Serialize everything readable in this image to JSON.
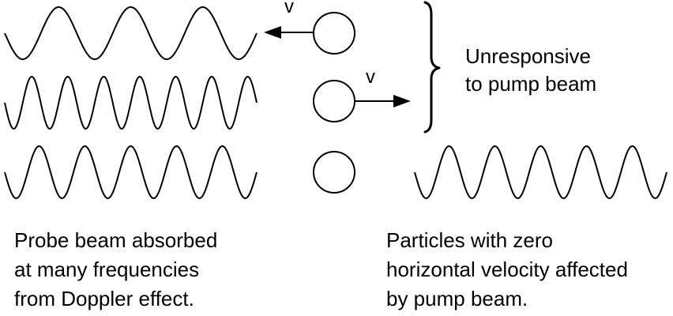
{
  "labels": {
    "velocity_top": "v",
    "velocity_mid": "v",
    "brace_line1": "Unresponsive",
    "brace_line2": "to pump beam",
    "probe_line1": "Probe beam absorbed",
    "probe_line2": "at many frequencies",
    "probe_line3": "from Doppler effect.",
    "pump_line1": "Particles with zero",
    "pump_line2": "horizontal velocity affected",
    "pump_line3": "by pump beam."
  },
  "waves": [
    {
      "name": "probe-wave-low-frequency",
      "cycles": 3.5
    },
    {
      "name": "probe-wave-high-frequency",
      "cycles": 7
    },
    {
      "name": "probe-wave-medium-frequency",
      "cycles": 5.5
    },
    {
      "name": "pump-wave",
      "cycles": 5.5
    }
  ],
  "particles": [
    {
      "name": "particle-moving-left",
      "direction": "left"
    },
    {
      "name": "particle-moving-right",
      "direction": "right"
    },
    {
      "name": "particle-stationary",
      "direction": "none"
    }
  ],
  "colors": {
    "stroke": "#000000",
    "background": "#ffffff"
  }
}
